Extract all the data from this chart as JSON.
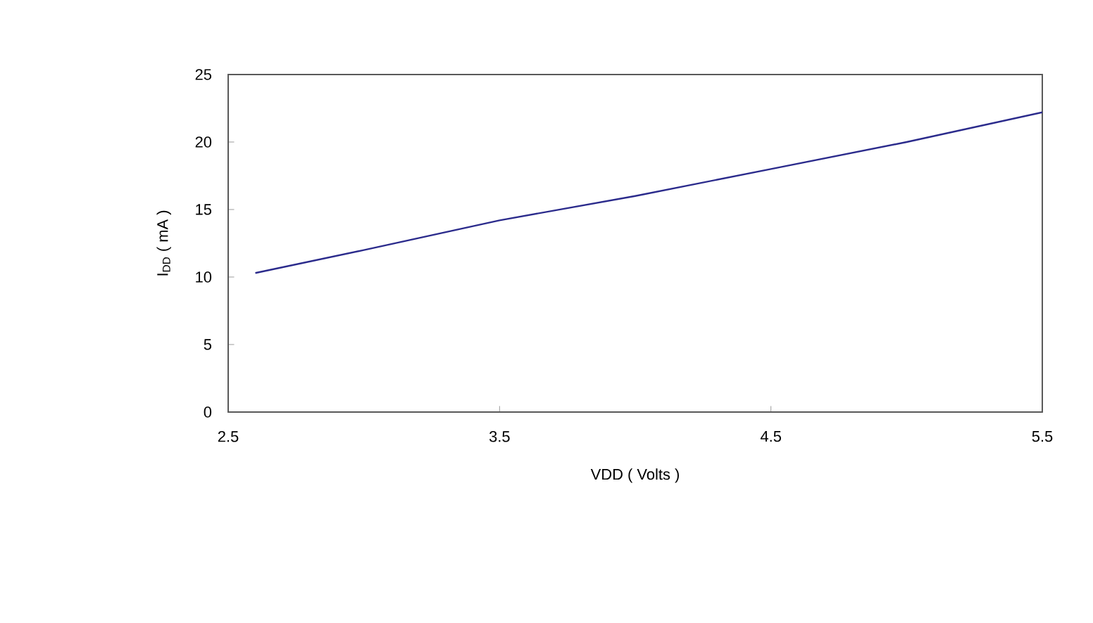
{
  "chart_data": {
    "type": "line",
    "xlabel": "VDD ( Volts )",
    "ylabel": "I$_{DD}$ ( mA )",
    "x": [
      2.6,
      3.0,
      3.5,
      4.0,
      4.5,
      5.0,
      5.5
    ],
    "series": [
      {
        "color": "#2b2b8c",
        "values": [
          10.3,
          12.0,
          14.2,
          16.0,
          18.0,
          20.0,
          22.2
        ]
      }
    ],
    "xlim": [
      2.5,
      5.5
    ],
    "xticks": [
      2.5,
      3.5,
      4.5,
      5.5
    ],
    "ylim": [
      0,
      25
    ],
    "yticks": [
      0,
      5,
      10,
      15,
      20,
      25
    ],
    "grid": false
  }
}
